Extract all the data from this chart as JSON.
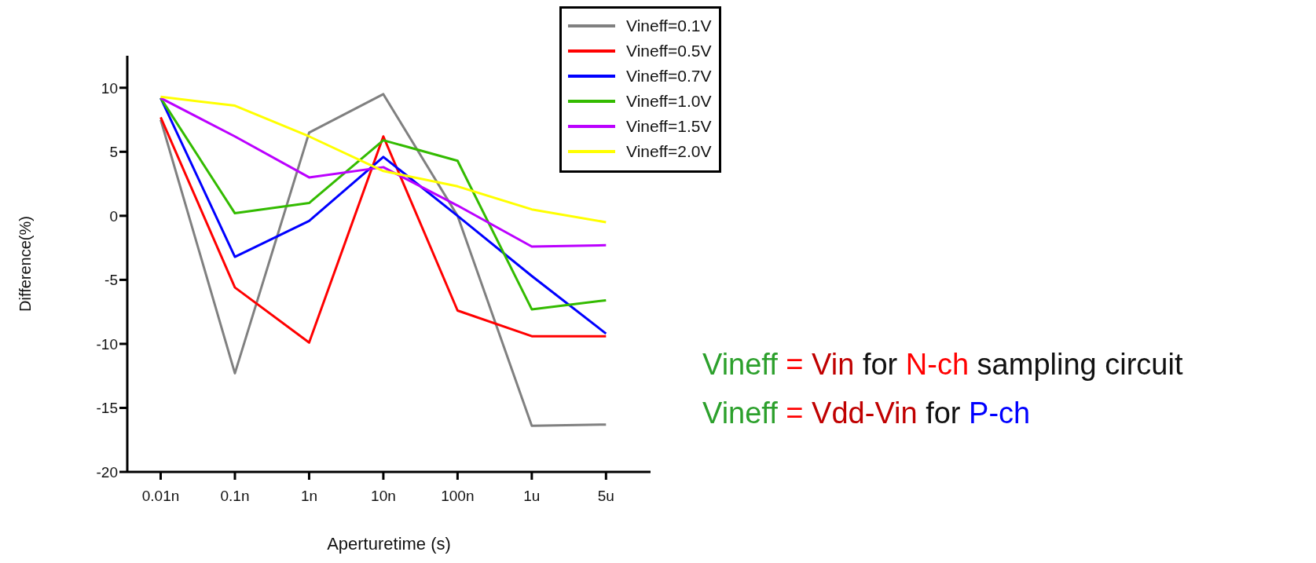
{
  "chart_data": {
    "type": "line",
    "xlabel": "Aperturetime (s)",
    "ylabel": "Difference(%)",
    "categories": [
      "0.01n",
      "0.1n",
      "1n",
      "10n",
      "100n",
      "1u",
      "5u"
    ],
    "series": [
      {
        "name": "Vineff=0.1V",
        "color": "#808080",
        "values": [
          7.5,
          -12.3,
          6.5,
          9.5,
          0,
          -16.4,
          -16.3
        ]
      },
      {
        "name": "Vineff=0.5V",
        "color": "#ff0000",
        "values": [
          7.7,
          -5.6,
          -9.9,
          6.2,
          -7.4,
          -9.4,
          -9.4
        ]
      },
      {
        "name": "Vineff=0.7V",
        "color": "#0000ff",
        "values": [
          9.2,
          -3.2,
          -0.4,
          4.6,
          0,
          -4.7,
          -9.2
        ]
      },
      {
        "name": "Vineff=1.0V",
        "color": "#33bb00",
        "values": [
          9.2,
          0.2,
          1.0,
          5.9,
          4.3,
          -7.3,
          -6.6
        ]
      },
      {
        "name": "Vineff=1.5V",
        "color": "#bb00ff",
        "values": [
          9.2,
          6.2,
          3.0,
          3.8,
          0.8,
          -2.4,
          -2.3
        ]
      },
      {
        "name": "Vineff=2.0V",
        "color": "#ffff00",
        "values": [
          9.3,
          8.6,
          6.2,
          3.5,
          2.3,
          0.5,
          -0.5
        ]
      }
    ],
    "ylim": [
      -20,
      12.5
    ],
    "yticks": [
      -20,
      -15,
      -10,
      -5,
      0,
      5,
      10
    ],
    "grid": false,
    "legend": "top right",
    "marker": "none",
    "line_style": "solid",
    "annotations": [
      "Vineff = Vin for N-ch sampling circuit",
      "Vineff = Vdd-Vin for P-ch"
    ]
  }
}
